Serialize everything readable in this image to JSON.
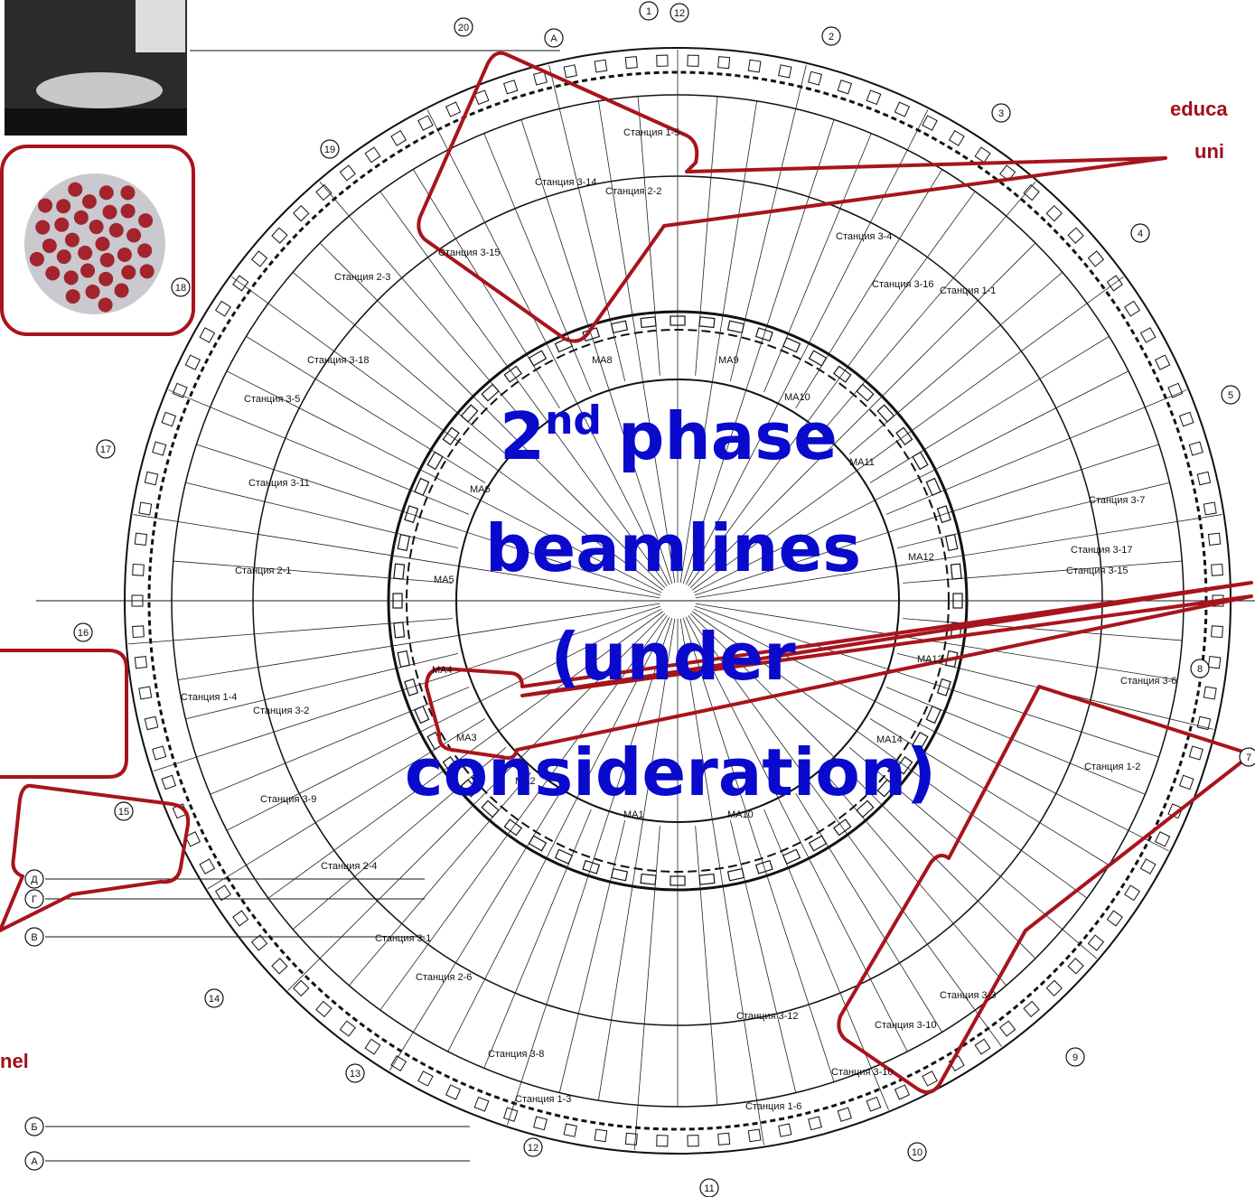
{
  "headline": {
    "number": "2",
    "suffix": "nd",
    "lines": [
      "phase",
      "beamlines",
      "(under",
      "consideration)"
    ]
  },
  "callouts": [
    "educa",
    "uni",
    "nel"
  ],
  "stations": [
    "Станция 1-5",
    "Станция 3-14",
    "Станция 2-2",
    "Станция 3-15",
    "Станция 2-3",
    "Станция 3-4",
    "Станция 3-16",
    "Станция 1-1",
    "Станция 3-18",
    "Станция 3-5",
    "Станция 3-11",
    "Станция 3-7",
    "Станция 3-17",
    "Станция 3-15",
    "Станция 2-1",
    "Станция 1-4",
    "Станция 3-2",
    "Станция 3-9",
    "Станция 3-6",
    "Станция 1-2",
    "Станция 2-4",
    "Станция 3-1",
    "Станция 2-6",
    "Станция 3-3",
    "Станция 3-10",
    "Станция 3-10",
    "Станция 3-8",
    "Станция 3-12",
    "Станция 1-3",
    "Станция 1-6"
  ],
  "sectors": [
    "MA1",
    "MA2",
    "MA3",
    "MA4",
    "MA5",
    "MA6",
    "MA8",
    "MA9",
    "MA10",
    "MA11",
    "MA12",
    "MA13",
    "MA14",
    "MA10"
  ],
  "axes": [
    "1",
    "12",
    "2",
    "3",
    "4",
    "5",
    "7",
    "8",
    "9",
    "10",
    "11",
    "12",
    "13",
    "14",
    "15",
    "16",
    "17",
    "18",
    "19",
    "20",
    "А",
    "Д",
    "Г",
    "В",
    "Б",
    "А"
  ]
}
